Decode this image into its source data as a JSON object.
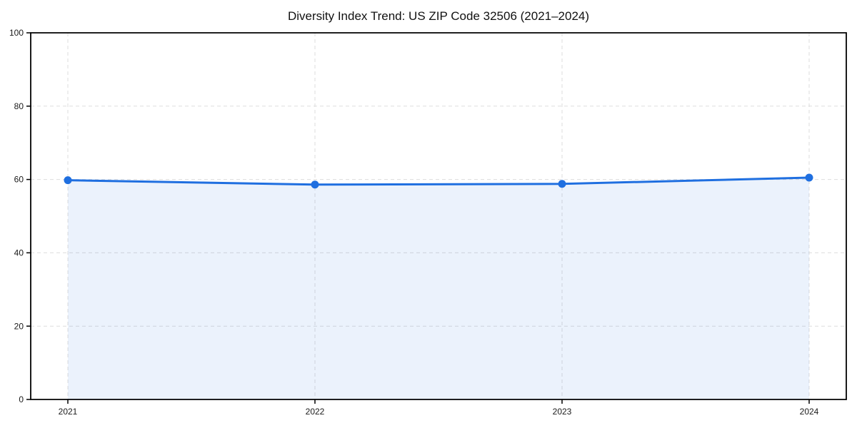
{
  "chart_data": {
    "type": "area",
    "title": "Diversity Index Trend: US ZIP Code 32506 (2021–2024)",
    "categories": [
      "2021",
      "2022",
      "2023",
      "2024"
    ],
    "x": [
      2021,
      2022,
      2023,
      2024
    ],
    "series": [
      {
        "name": "Diversity Index",
        "values": [
          59.8,
          58.6,
          58.8,
          60.5
        ]
      }
    ],
    "xlabel": "",
    "ylabel": "",
    "ylim": [
      0,
      100
    ],
    "yticks": [
      0,
      20,
      40,
      60,
      80,
      100
    ],
    "grid": true,
    "grid_style": "dashed",
    "legend": false,
    "colors": {
      "line": "#1f6fe0",
      "marker": "#1f6fe0",
      "area_fill": "#1f6fe0",
      "area_opacity": 0.09,
      "grid": "#dddddd",
      "axis": "#000000",
      "text": "#1a1a1a",
      "background": "#ffffff"
    }
  }
}
